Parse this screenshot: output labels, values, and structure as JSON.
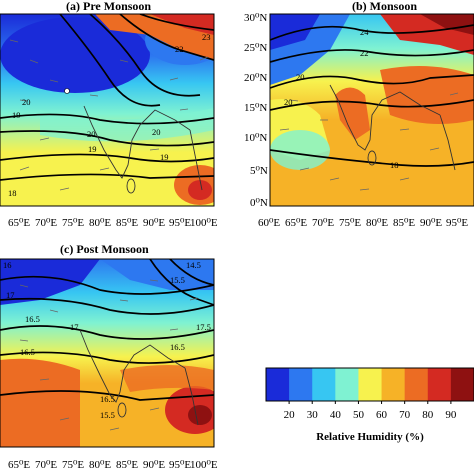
{
  "panels": {
    "a": {
      "title": "(a)  Pre Monsoon",
      "x_ticks": [
        "65⁰E",
        "70⁰E",
        "75⁰E",
        "80⁰E",
        "85⁰E",
        "90⁰E",
        "95⁰E",
        "100⁰E"
      ],
      "y_ticks": [],
      "contour_labels": [
        "19",
        "20",
        "20",
        "20",
        "19",
        "19",
        "18",
        "22",
        "23"
      ]
    },
    "b": {
      "title": "(b)  Monsoon",
      "x_ticks": [
        "60⁰E",
        "65⁰E",
        "70⁰E",
        "75⁰E",
        "80⁰E",
        "85⁰E",
        "90⁰E",
        "95⁰E"
      ],
      "y_ticks": [
        "30⁰N",
        "25⁰N",
        "20⁰N",
        "15⁰N",
        "10⁰N",
        "5⁰N",
        "0⁰N"
      ],
      "contour_labels": [
        "24",
        "22",
        "20",
        "20",
        "18"
      ]
    },
    "c": {
      "title": "(c) Post Monsoon",
      "x_ticks": [
        "65⁰E",
        "70⁰E",
        "75⁰E",
        "80⁰E",
        "85⁰E",
        "90⁰E",
        "95⁰E",
        "100⁰E"
      ],
      "y_ticks": [],
      "contour_labels": [
        "16",
        "14.5",
        "15.5",
        "17",
        "16.5",
        "16.5",
        "17",
        "17.5",
        "16.5",
        "16.5",
        "15.5"
      ]
    }
  },
  "colorbar": {
    "title": "Relative Humidity (%)",
    "ticks": [
      "20",
      "30",
      "40",
      "50",
      "60",
      "70",
      "80",
      "90"
    ],
    "colors": [
      "#1a2bd9",
      "#2d78f0",
      "#37c6f2",
      "#7ff2d2",
      "#f7f24e",
      "#f6b227",
      "#ec6c23",
      "#d42a22",
      "#8e1111"
    ]
  }
}
